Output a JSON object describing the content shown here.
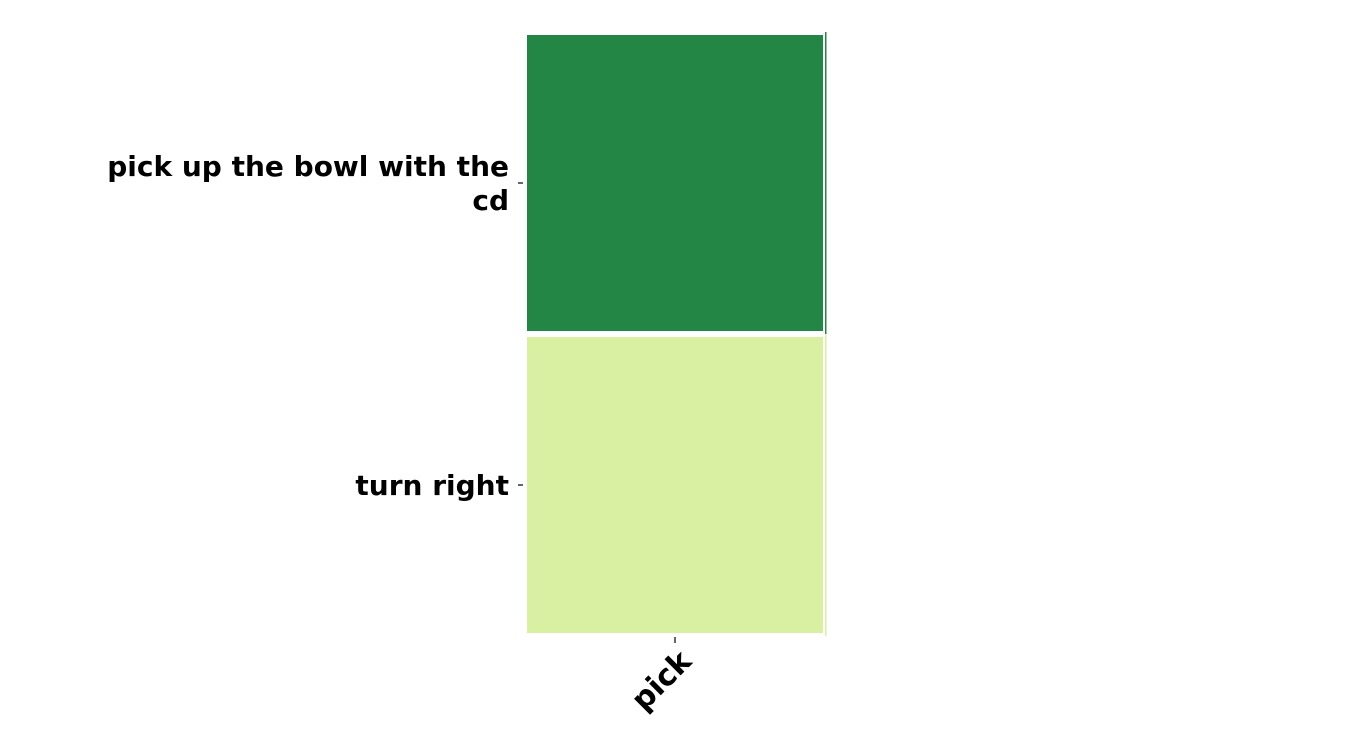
{
  "chart_data": {
    "type": "heatmap",
    "x_categories": [
      "pick"
    ],
    "y_categories": [
      [
        "pick up the bowl with the",
        "cd"
      ],
      [
        "turn right"
      ]
    ],
    "values": [
      [
        0.85
      ],
      [
        0.2
      ]
    ],
    "cell_colors": [
      [
        "#238645"
      ],
      [
        "#d9f0a3"
      ]
    ],
    "colorscale": "YlGn",
    "title": "",
    "xlabel": "",
    "ylabel": "",
    "grid": false,
    "legend": "none"
  }
}
